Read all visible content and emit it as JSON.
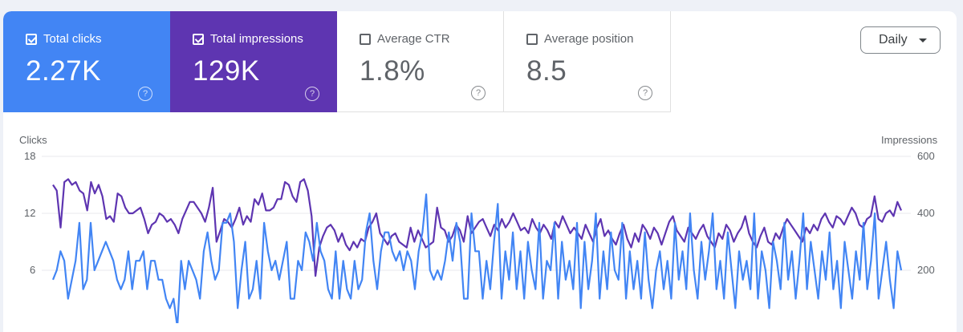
{
  "metrics": [
    {
      "label": "Total clicks",
      "value": "2.27K",
      "checked": true
    },
    {
      "label": "Total impressions",
      "value": "129K",
      "checked": true
    },
    {
      "label": "Average CTR",
      "value": "1.8%",
      "checked": false
    },
    {
      "label": "Average position",
      "value": "8.5",
      "checked": false
    }
  ],
  "help_glyph": "?",
  "granularity": {
    "selected": "Daily"
  },
  "colors": {
    "clicks": "#4285f4",
    "impressions": "#5e35b1"
  },
  "chart_data": {
    "type": "line",
    "left_axis": {
      "label": "Clicks",
      "ylim": [
        0,
        18
      ],
      "ticks": [
        "18",
        "12",
        "6"
      ]
    },
    "right_axis": {
      "label": "Impressions",
      "ylim": [
        0,
        600
      ],
      "ticks": [
        "600",
        "400",
        "200"
      ]
    },
    "series": [
      {
        "name": "Clicks",
        "axis": "left",
        "values": [
          5,
          6,
          8,
          7,
          3,
          5,
          7,
          11,
          4,
          5,
          11,
          6,
          7,
          8,
          9,
          8,
          7,
          5,
          4,
          5,
          8,
          4,
          7,
          7,
          8,
          4,
          7,
          7,
          5,
          5,
          3,
          2,
          3,
          0,
          7,
          4,
          7,
          6,
          5,
          3,
          8,
          10,
          7,
          5,
          6,
          11,
          11,
          12,
          9,
          2,
          6,
          9,
          3,
          4,
          7,
          3,
          11,
          8,
          6,
          7,
          5,
          7,
          9,
          3,
          3,
          7,
          6,
          10,
          9,
          7,
          11,
          8,
          7,
          4,
          3,
          8,
          3,
          7,
          4,
          3,
          7,
          4,
          5,
          10,
          12,
          7,
          4,
          8,
          10,
          10,
          8,
          7,
          8,
          6,
          8,
          7,
          4,
          8,
          10,
          14,
          6,
          5,
          6,
          5,
          7,
          10,
          7,
          11,
          9,
          3,
          3,
          12,
          8,
          8,
          3,
          7,
          4,
          9,
          13,
          3,
          8,
          5,
          10,
          4,
          8,
          3,
          9,
          6,
          4,
          11,
          3,
          7,
          6,
          11,
          3,
          9,
          5,
          7,
          4,
          11,
          2,
          9,
          4,
          7,
          12,
          3,
          8,
          4,
          10,
          6,
          5,
          11,
          3,
          8,
          4,
          7,
          3,
          10,
          5,
          2,
          6,
          8,
          4,
          7,
          3,
          11,
          5,
          8,
          4,
          12,
          6,
          3,
          9,
          5,
          8,
          12,
          4,
          7,
          3,
          10,
          6,
          2,
          8,
          5,
          7,
          4,
          12,
          3,
          8,
          6,
          2,
          9,
          7,
          4,
          11,
          5,
          8,
          3,
          7,
          12,
          4,
          9,
          6,
          3,
          8,
          5,
          10,
          4,
          7,
          2,
          9,
          6,
          3,
          8,
          5,
          11,
          4,
          7,
          12,
          3,
          6,
          9,
          5,
          2,
          8,
          6
        ]
      },
      {
        "name": "Impressions",
        "axis": "right",
        "values": [
          500,
          480,
          350,
          510,
          520,
          500,
          510,
          480,
          470,
          410,
          510,
          470,
          500,
          460,
          380,
          390,
          370,
          470,
          460,
          420,
          400,
          400,
          410,
          420,
          380,
          330,
          360,
          370,
          400,
          390,
          370,
          380,
          360,
          330,
          380,
          410,
          440,
          440,
          420,
          400,
          370,
          420,
          490,
          300,
          340,
          380,
          370,
          350,
          380,
          420,
          360,
          390,
          370,
          450,
          430,
          470,
          410,
          410,
          420,
          450,
          450,
          510,
          500,
          460,
          440,
          510,
          520,
          480,
          390,
          180,
          280,
          320,
          350,
          360,
          340,
          300,
          330,
          290,
          270,
          300,
          280,
          310,
          300,
          350,
          370,
          400,
          330,
          310,
          290,
          320,
          330,
          300,
          290,
          280,
          350,
          300,
          340,
          310,
          280,
          290,
          300,
          420,
          350,
          340,
          300,
          320,
          360,
          340,
          300,
          390,
          330,
          350,
          370,
          380,
          350,
          320,
          360,
          340,
          380,
          350,
          370,
          400,
          370,
          340,
          350,
          330,
          380,
          350,
          330,
          360,
          340,
          310,
          370,
          350,
          390,
          360,
          330,
          350,
          330,
          310,
          360,
          330,
          300,
          350,
          380,
          320,
          340,
          310,
          290,
          330,
          360,
          310,
          280,
          330,
          300,
          360,
          340,
          310,
          350,
          330,
          290,
          330,
          370,
          390,
          340,
          320,
          300,
          350,
          330,
          310,
          340,
          360,
          320,
          300,
          280,
          330,
          310,
          360,
          340,
          300,
          330,
          350,
          390,
          330,
          300,
          280,
          320,
          350,
          300,
          290,
          330,
          310,
          350,
          380,
          360,
          340,
          320,
          300,
          350,
          330,
          360,
          340,
          380,
          400,
          370,
          350,
          390,
          380,
          360,
          390,
          420,
          400,
          360,
          350,
          380,
          390,
          460,
          380,
          370,
          400,
          410,
          390,
          440,
          410
        ]
      }
    ]
  }
}
